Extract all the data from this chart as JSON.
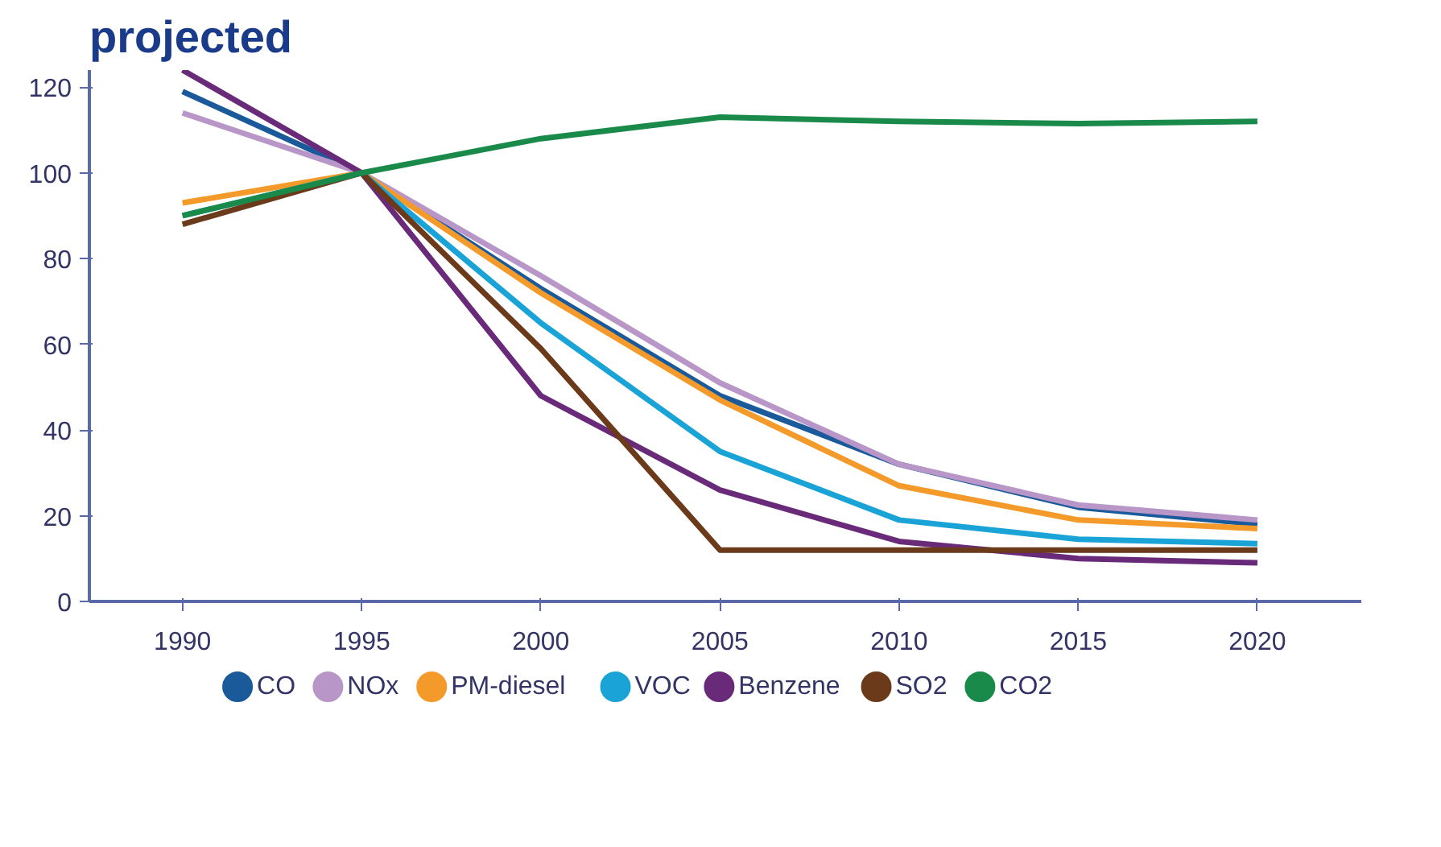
{
  "chart_data": {
    "type": "line",
    "title": "projected",
    "x": [
      1990,
      1995,
      2000,
      2005,
      2010,
      2015,
      2020
    ],
    "xlim": [
      1987.4,
      2022.9
    ],
    "xticks": [
      1990,
      1995,
      2000,
      2005,
      2010,
      2015,
      2020
    ],
    "ylim": [
      0,
      124
    ],
    "yticks": [
      0,
      20,
      40,
      60,
      80,
      100,
      120
    ],
    "grid": false,
    "legend": "bottom",
    "marker": "none",
    "line_style": "solid",
    "series": [
      {
        "name": "CO",
        "color": "#1a5a9a",
        "values": [
          119,
          100,
          73,
          48,
          32,
          22,
          18
        ]
      },
      {
        "name": "NOx",
        "color": "#b896c8",
        "values": [
          114,
          100,
          76,
          51,
          32,
          22.5,
          19
        ]
      },
      {
        "name": "PM-diesel",
        "color": "#f39a2a",
        "values": [
          93,
          100,
          72,
          47,
          27,
          19,
          17
        ]
      },
      {
        "name": "VOC",
        "color": "#1aa3d6",
        "values": [
          90,
          100,
          65,
          35,
          19,
          14.5,
          13.5
        ]
      },
      {
        "name": "Benzene",
        "color": "#6a2a7a",
        "values": [
          124,
          100,
          48,
          26,
          14,
          10,
          9
        ]
      },
      {
        "name": "SO2",
        "color": "#6b3a1a",
        "values": [
          88,
          100,
          59,
          12,
          12,
          12,
          12
        ]
      },
      {
        "name": "CO2",
        "color": "#1a8a4a",
        "values": [
          90,
          100,
          108,
          113,
          112,
          111.5,
          112
        ]
      }
    ]
  }
}
